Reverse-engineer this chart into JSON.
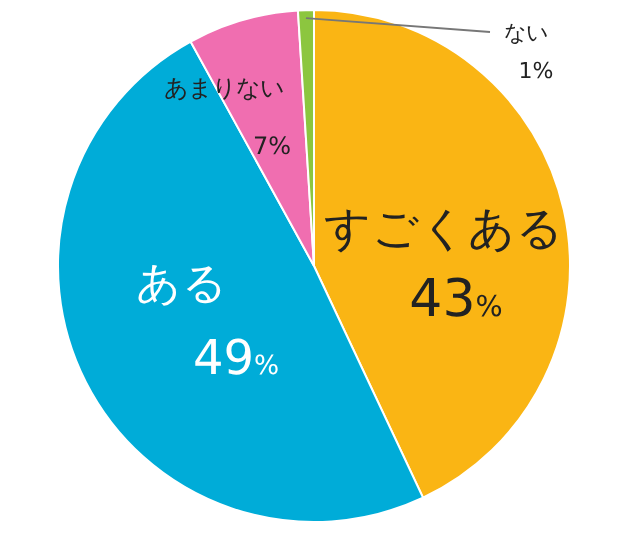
{
  "chart_data": {
    "type": "pie",
    "categories": [
      "すごくある",
      "ある",
      "あまりない",
      "ない"
    ],
    "values": [
      43,
      49,
      7,
      1
    ],
    "value_labels": [
      "43%",
      "49%",
      "7%",
      "1%"
    ],
    "colors": [
      "#fab514",
      "#00acd8",
      "#f06eb0",
      "#8cc63f"
    ]
  }
}
